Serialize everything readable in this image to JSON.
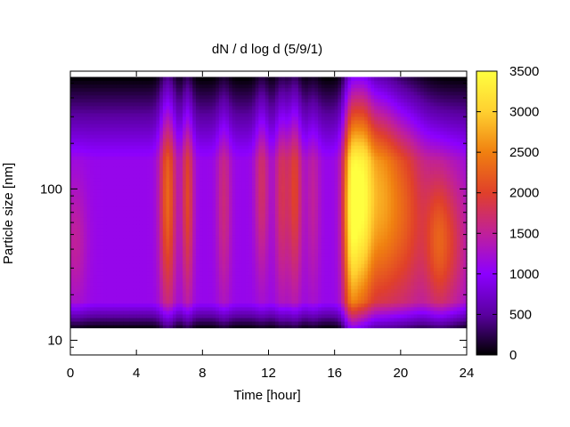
{
  "chart_data": {
    "type": "heatmap",
    "title": "dN / d log d (5/9/1)",
    "xlabel": "Time [hour]",
    "ylabel": "Particle size [nm]",
    "xlim": [
      0,
      24
    ],
    "ylim": [
      8,
      600
    ],
    "yscale": "log",
    "x_ticks": [
      0,
      4,
      8,
      12,
      16,
      20,
      24
    ],
    "x_tick_labels": [
      "0",
      "4",
      "8",
      "12",
      "16",
      "20",
      "24"
    ],
    "y_ticks": [
      10,
      100
    ],
    "y_tick_labels": [
      "10",
      "100"
    ],
    "colorbar": {
      "min": 0,
      "max": 3500,
      "ticks": [
        0,
        500,
        1000,
        1500,
        2000,
        2500,
        3000,
        3500
      ],
      "tick_labels": [
        "0",
        "500",
        "1000",
        "1500",
        "2000",
        "2500",
        "3000",
        "3500"
      ],
      "colormap": [
        "#000000",
        "#5a00a0",
        "#8c00ff",
        "#c0209a",
        "#e0402a",
        "#f08010",
        "#ffd030",
        "#ffff40"
      ]
    },
    "data_size_range_nm": [
      12,
      550
    ],
    "background_level": 1100,
    "events": [
      {
        "time": 5.9,
        "size": 90,
        "peak": 2300,
        "time_width": 0.35,
        "size_width": 0.55
      },
      {
        "time": 7.1,
        "size": 90,
        "peak": 2050,
        "time_width": 0.25,
        "size_width": 0.5
      },
      {
        "time": 9.3,
        "size": 85,
        "peak": 1650,
        "time_width": 0.3,
        "size_width": 0.5
      },
      {
        "time": 11.6,
        "size": 110,
        "peak": 1750,
        "time_width": 0.3,
        "size_width": 0.45
      },
      {
        "time": 12.8,
        "size": 100,
        "peak": 1800,
        "time_width": 0.3,
        "size_width": 0.5
      },
      {
        "time": 13.6,
        "size": 100,
        "peak": 2000,
        "time_width": 0.3,
        "size_width": 0.5
      },
      {
        "time": 14.7,
        "size": 90,
        "peak": 1500,
        "time_width": 0.3,
        "size_width": 0.5
      },
      {
        "time": 17.0,
        "size": 75,
        "peak": 2950,
        "time_width": 0.35,
        "size_width": 0.6
      },
      {
        "time": 17.7,
        "size": 90,
        "peak": 2400,
        "time_width": 0.4,
        "size_width": 0.6
      },
      {
        "time": 18.6,
        "size": 90,
        "peak": 2600,
        "time_width": 0.9,
        "size_width": 0.55
      },
      {
        "time": 20.4,
        "size": 70,
        "peak": 2000,
        "time_width": 0.9,
        "size_width": 0.5
      },
      {
        "time": 22.3,
        "size": 45,
        "peak": 2100,
        "time_width": 0.6,
        "size_width": 0.35
      },
      {
        "time": 23.4,
        "size": 45,
        "peak": 1600,
        "time_width": 0.6,
        "size_width": 0.35
      },
      {
        "time": 0.3,
        "size": 45,
        "peak": 1500,
        "time_width": 0.5,
        "size_width": 0.3
      }
    ]
  }
}
